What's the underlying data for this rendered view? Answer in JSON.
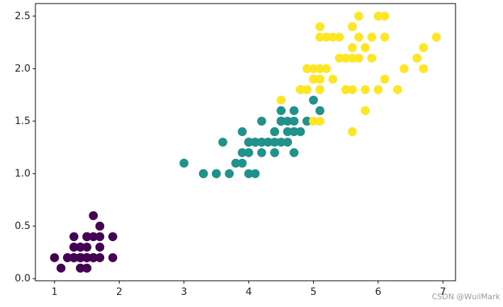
{
  "chart_data": {
    "type": "scatter",
    "series": [
      {
        "color": "#440154",
        "x": [
          1.4,
          1.4,
          1.3,
          1.5,
          1.4,
          1.7,
          1.4,
          1.5,
          1.4,
          1.5,
          1.5,
          1.6,
          1.4,
          1.1,
          1.2,
          1.5,
          1.3,
          1.4,
          1.7,
          1.5,
          1.7,
          1.5,
          1.0,
          1.7,
          1.9,
          1.6,
          1.6,
          1.5,
          1.4,
          1.6,
          1.6,
          1.5,
          1.5,
          1.4,
          1.5,
          1.2,
          1.3,
          1.4,
          1.3,
          1.5,
          1.3,
          1.3,
          1.3,
          1.6,
          1.9,
          1.4,
          1.6,
          1.4,
          1.5,
          1.4
        ],
        "y": [
          0.2,
          0.2,
          0.2,
          0.2,
          0.2,
          0.4,
          0.3,
          0.2,
          0.2,
          0.1,
          0.2,
          0.2,
          0.1,
          0.1,
          0.2,
          0.4,
          0.4,
          0.3,
          0.3,
          0.3,
          0.2,
          0.4,
          0.2,
          0.5,
          0.2,
          0.2,
          0.4,
          0.2,
          0.2,
          0.2,
          0.2,
          0.4,
          0.1,
          0.2,
          0.2,
          0.2,
          0.2,
          0.1,
          0.2,
          0.2,
          0.3,
          0.3,
          0.2,
          0.6,
          0.4,
          0.3,
          0.2,
          0.2,
          0.2,
          0.2
        ]
      },
      {
        "color": "#21918c",
        "x": [
          4.7,
          4.5,
          4.9,
          4.0,
          4.6,
          4.5,
          4.7,
          3.3,
          4.6,
          3.9,
          3.5,
          4.2,
          4.0,
          4.7,
          3.6,
          4.4,
          4.5,
          4.1,
          4.5,
          3.9,
          4.8,
          4.0,
          4.9,
          4.7,
          4.3,
          4.4,
          4.8,
          5.0,
          4.5,
          3.5,
          3.8,
          3.7,
          3.9,
          5.1,
          4.5,
          4.5,
          4.7,
          4.4,
          4.1,
          4.0,
          4.4,
          4.6,
          4.0,
          3.3,
          4.2,
          4.2,
          4.2,
          4.3,
          3.0,
          4.1
        ],
        "y": [
          1.4,
          1.5,
          1.5,
          1.3,
          1.5,
          1.3,
          1.6,
          1.0,
          1.3,
          1.4,
          1.0,
          1.5,
          1.0,
          1.4,
          1.3,
          1.4,
          1.5,
          1.0,
          1.5,
          1.1,
          1.8,
          1.3,
          1.5,
          1.2,
          1.3,
          1.4,
          1.4,
          1.7,
          1.5,
          1.0,
          1.1,
          1.0,
          1.2,
          1.6,
          1.5,
          1.6,
          1.5,
          1.3,
          1.3,
          1.3,
          1.2,
          1.4,
          1.2,
          1.0,
          1.3,
          1.2,
          1.3,
          1.3,
          1.1,
          1.3
        ]
      },
      {
        "color": "#fde725",
        "x": [
          6.0,
          5.1,
          5.9,
          5.6,
          5.8,
          6.6,
          4.5,
          6.3,
          5.8,
          6.1,
          5.1,
          5.3,
          5.5,
          5.0,
          5.1,
          5.3,
          5.5,
          6.7,
          6.9,
          5.0,
          5.7,
          4.9,
          6.7,
          4.9,
          5.7,
          6.0,
          4.8,
          4.9,
          5.6,
          5.8,
          6.1,
          6.4,
          5.6,
          5.1,
          5.6,
          6.1,
          5.6,
          5.5,
          4.8,
          5.4,
          5.6,
          5.1,
          5.1,
          5.9,
          5.7,
          5.2,
          5.0,
          5.2,
          5.4,
          5.1
        ],
        "y": [
          2.5,
          1.9,
          2.1,
          1.8,
          2.2,
          2.1,
          1.7,
          1.8,
          1.8,
          2.5,
          2.0,
          1.9,
          2.1,
          2.0,
          2.4,
          2.3,
          1.8,
          2.2,
          2.3,
          1.5,
          2.3,
          2.0,
          2.0,
          1.8,
          2.1,
          1.8,
          1.8,
          1.8,
          2.1,
          1.6,
          1.9,
          2.0,
          2.2,
          1.5,
          1.4,
          2.3,
          2.4,
          1.8,
          1.8,
          2.1,
          2.4,
          2.3,
          1.9,
          2.3,
          2.5,
          2.3,
          1.9,
          2.0,
          2.3,
          1.8
        ]
      }
    ],
    "xlim": [
      0.705,
      7.195
    ],
    "xticks": [
      1,
      2,
      3,
      4,
      5,
      6,
      7
    ],
    "ylim": [
      -0.02,
      2.62
    ],
    "yticks": [
      {
        "value": 0,
        "label": "0.0"
      },
      {
        "value": 0.5,
        "label": "0.5"
      },
      {
        "value": 1,
        "label": "1.0"
      },
      {
        "value": 1.5,
        "label": "1.5"
      },
      {
        "value": 2,
        "label": "2.0"
      },
      {
        "value": 2.5,
        "label": "2.5"
      }
    ],
    "watermark": "CSDN @WuilMark"
  }
}
